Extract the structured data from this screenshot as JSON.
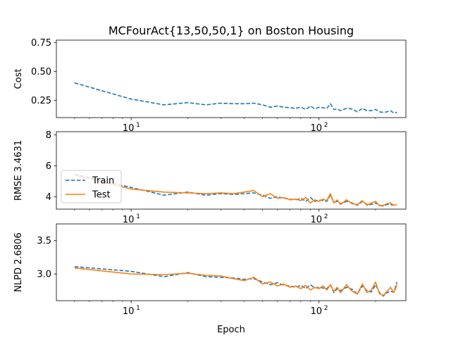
{
  "chart_data": {
    "type": "line",
    "title": "MCFourAct{13,50,50,1} on Boston Housing",
    "xlabel": "Epoch",
    "x_scale": "log",
    "xlim": [
      4,
      290
    ],
    "x_tick_labels": [
      {
        "base": "10",
        "exp": "1",
        "value": 10
      },
      {
        "base": "10",
        "exp": "2",
        "value": 100
      }
    ],
    "colors": {
      "Train": "#1f77b4",
      "Test": "#ff7f0e"
    },
    "panels": [
      {
        "ylabel": "Cost",
        "ylim": [
          0.1,
          0.77
        ],
        "yticks": [
          "0.25",
          "0.50",
          "0.75"
        ],
        "ytick_values": [
          0.25,
          0.5,
          0.75
        ],
        "series": [
          {
            "name": "Train",
            "style": "dashed",
            "x": [
              5,
              10,
              15,
              20,
              25,
              30,
              35,
              40,
              45,
              50,
              55,
              60,
              65,
              70,
              75,
              80,
              85,
              90,
              95,
              100,
              105,
              110,
              115,
              120,
              125,
              130,
              140,
              150,
              160,
              170,
              180,
              190,
              200,
              210,
              220,
              230,
              240,
              250,
              260
            ],
            "y": [
              0.4,
              0.26,
              0.21,
              0.23,
              0.21,
              0.225,
              0.22,
              0.22,
              0.225,
              0.21,
              0.19,
              0.2,
              0.19,
              0.185,
              0.18,
              0.19,
              0.17,
              0.2,
              0.175,
              0.19,
              0.185,
              0.18,
              0.22,
              0.17,
              0.175,
              0.16,
              0.18,
              0.175,
              0.15,
              0.18,
              0.16,
              0.16,
              0.17,
              0.15,
              0.145,
              0.15,
              0.16,
              0.14,
              0.145
            ]
          }
        ]
      },
      {
        "ylabel": "RMSE 3.4631",
        "ylim": [
          3.2,
          8.2
        ],
        "yticks": [
          "4",
          "6",
          "8"
        ],
        "ytick_values": [
          4,
          6,
          8
        ],
        "legend": {
          "location": "upper left",
          "entries": [
            "Train",
            "Test"
          ]
        },
        "series": [
          {
            "name": "Train",
            "style": "dashed",
            "x": [
              5,
              10,
              15,
              20,
              25,
              30,
              35,
              40,
              45,
              50,
              55,
              60,
              65,
              70,
              75,
              80,
              85,
              90,
              95,
              100,
              105,
              110,
              115,
              120,
              125,
              130,
              140,
              150,
              160,
              170,
              180,
              190,
              200,
              210,
              220,
              230,
              240,
              250,
              260
            ],
            "y": [
              5.45,
              4.6,
              4.1,
              4.3,
              4.1,
              4.2,
              4.15,
              4.2,
              4.25,
              4.1,
              3.9,
              4.0,
              3.9,
              3.85,
              3.8,
              3.9,
              3.7,
              3.95,
              3.7,
              3.8,
              3.75,
              3.7,
              4.1,
              3.65,
              3.7,
              3.55,
              3.7,
              3.6,
              3.45,
              3.7,
              3.5,
              3.5,
              3.6,
              3.45,
              3.4,
              3.5,
              3.5,
              3.45,
              3.5
            ]
          },
          {
            "name": "Test",
            "style": "solid",
            "x": [
              5,
              10,
              15,
              20,
              25,
              30,
              35,
              40,
              45,
              50,
              55,
              60,
              65,
              70,
              75,
              80,
              85,
              90,
              95,
              100,
              105,
              110,
              115,
              120,
              125,
              130,
              140,
              150,
              160,
              170,
              180,
              190,
              200,
              210,
              220,
              230,
              240,
              250,
              260
            ],
            "y": [
              5.4,
              4.5,
              4.3,
              4.25,
              4.2,
              4.25,
              4.2,
              4.3,
              4.4,
              4.0,
              4.2,
              3.9,
              3.95,
              3.8,
              3.85,
              3.75,
              3.95,
              3.6,
              3.8,
              3.7,
              3.85,
              3.75,
              4.2,
              3.6,
              3.8,
              3.5,
              3.8,
              3.55,
              3.5,
              3.75,
              3.45,
              3.6,
              3.7,
              3.4,
              3.45,
              3.55,
              3.6,
              3.45,
              3.5
            ]
          }
        ]
      },
      {
        "ylabel": "NLPD 2.6806",
        "ylim": [
          2.6,
          3.75
        ],
        "yticks": [
          "3.0",
          "3.5"
        ],
        "ytick_values": [
          3.0,
          3.5
        ],
        "series": [
          {
            "name": "Train",
            "style": "dashed",
            "x": [
              5,
              10,
              15,
              20,
              25,
              30,
              35,
              40,
              45,
              50,
              55,
              60,
              65,
              70,
              75,
              80,
              85,
              90,
              95,
              100,
              105,
              110,
              115,
              120,
              125,
              130,
              140,
              150,
              160,
              170,
              180,
              190,
              200,
              210,
              220,
              230,
              240,
              250,
              260
            ],
            "y": [
              3.11,
              3.04,
              2.96,
              3.02,
              2.96,
              2.95,
              2.94,
              2.92,
              2.93,
              2.88,
              2.84,
              2.87,
              2.83,
              2.82,
              2.8,
              2.83,
              2.78,
              2.84,
              2.79,
              2.8,
              2.79,
              2.78,
              2.84,
              2.72,
              2.78,
              2.75,
              2.8,
              2.77,
              2.7,
              2.82,
              2.75,
              2.73,
              2.84,
              2.72,
              2.67,
              2.72,
              2.74,
              2.73,
              2.88
            ]
          },
          {
            "name": "Test",
            "style": "solid",
            "x": [
              5,
              10,
              15,
              20,
              25,
              30,
              35,
              40,
              45,
              50,
              55,
              60,
              65,
              70,
              75,
              80,
              85,
              90,
              95,
              100,
              105,
              110,
              115,
              120,
              125,
              130,
              140,
              150,
              160,
              170,
              180,
              190,
              200,
              210,
              220,
              230,
              240,
              250,
              260
            ],
            "y": [
              3.09,
              3.0,
              2.99,
              3.01,
              2.98,
              2.97,
              2.93,
              2.9,
              2.95,
              2.85,
              2.88,
              2.82,
              2.85,
              2.8,
              2.82,
              2.78,
              2.83,
              2.76,
              2.8,
              2.78,
              2.82,
              2.76,
              2.84,
              2.74,
              2.8,
              2.72,
              2.84,
              2.74,
              2.7,
              2.85,
              2.72,
              2.76,
              2.88,
              2.7,
              2.68,
              2.74,
              2.8,
              2.72,
              2.84
            ]
          }
        ]
      }
    ]
  }
}
